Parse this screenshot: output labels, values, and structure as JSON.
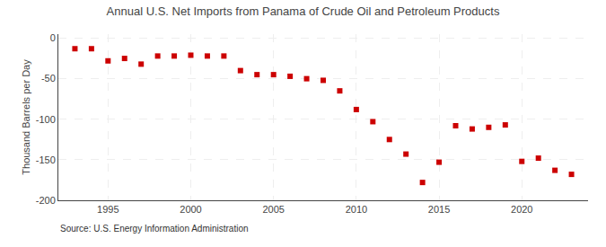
{
  "chart_data": {
    "type": "scatter",
    "title": "Annual U.S. Net Imports from Panama of Crude Oil and Petroleum Products",
    "ylabel": "Thousand Barrels per Day",
    "annotations": [
      "Source: U.S. Energy Information Administration"
    ],
    "x": [
      1993,
      1994,
      1995,
      1996,
      1997,
      1998,
      1999,
      2000,
      2001,
      2002,
      2003,
      2004,
      2005,
      2006,
      2007,
      2008,
      2009,
      2010,
      2011,
      2012,
      2013,
      2014,
      2015,
      2016,
      2017,
      2018,
      2019,
      2020,
      2021,
      2022,
      2023
    ],
    "values": [
      -13,
      -13,
      -28,
      -25,
      -32,
      -22,
      -22,
      -21,
      -22,
      -22,
      -40,
      -45,
      -45,
      -47,
      -50,
      -52,
      -65,
      -88,
      -103,
      -125,
      -143,
      -178,
      -153,
      -108,
      -112,
      -110,
      -107,
      -152,
      -148,
      -163,
      -168
    ],
    "color": "#cc0000",
    "marker": "square",
    "xlim": [
      1992,
      2024
    ],
    "xticks": [
      1995,
      2000,
      2005,
      2010,
      2015,
      2020
    ],
    "ylim": [
      -200,
      5
    ],
    "yticks": [
      0,
      -50,
      -100,
      -150,
      -200
    ],
    "grid": true
  }
}
